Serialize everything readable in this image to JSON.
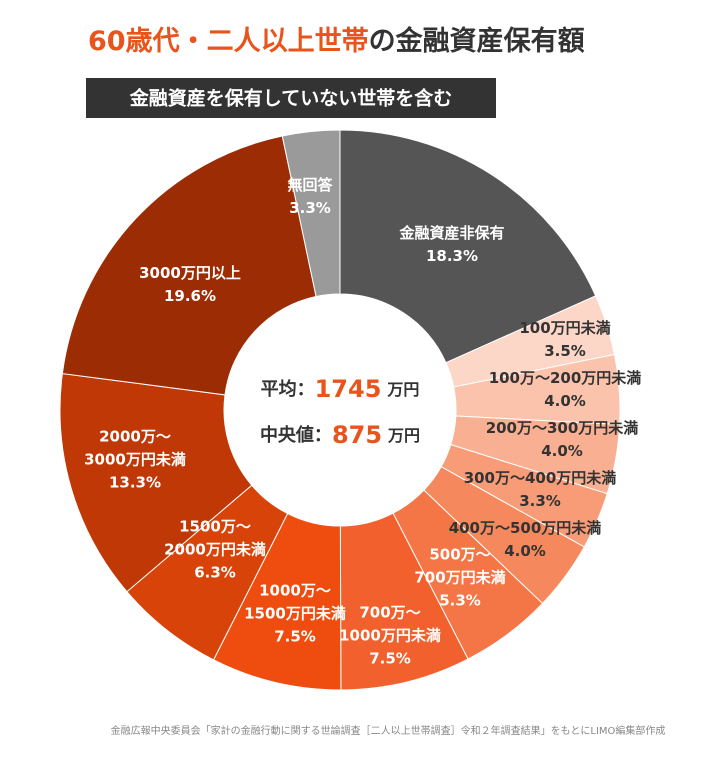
{
  "chart_data": {
    "type": "donut",
    "title_highlight": "60歳代・二人以上世帯",
    "title_rest": "の金融資産保有額",
    "subtitle": "金融資産を保有していない世帯を含む",
    "center": {
      "mean_label": "平均：",
      "mean": 1745,
      "unit": "万円",
      "median_label": "中央値：",
      "median": 875
    },
    "categories": [
      [
        "金融資産非保有"
      ],
      [
        "100万円未満"
      ],
      [
        "100万～200万円未満"
      ],
      [
        "200万～300万円未満"
      ],
      [
        "300万～400万円未満"
      ],
      [
        "400万～500万円未満"
      ],
      [
        "500万～",
        "700万円未満"
      ],
      [
        "700万～",
        "1000万円未満"
      ],
      [
        "1000万～",
        "1500万円未満"
      ],
      [
        "1500万～",
        "2000万円未満"
      ],
      [
        "2000万～",
        "3000万円未満"
      ],
      [
        "3000万円以上"
      ],
      [
        "無回答"
      ]
    ],
    "values": [
      18.3,
      3.5,
      4.0,
      4.0,
      3.3,
      4.0,
      5.3,
      7.5,
      7.5,
      6.3,
      13.3,
      19.6,
      3.3
    ],
    "value_labels": [
      "18.3%",
      "3.5%",
      "4.0%",
      "4.0%",
      "3.3%",
      "4.0%",
      "5.3%",
      "7.5%",
      "7.5%",
      "6.3%",
      "13.3%",
      "19.6%",
      "3.3%"
    ],
    "colors": [
      "#555555",
      "#fcd6c7",
      "#fbc3ac",
      "#f9af92",
      "#f89b77",
      "#f6885d",
      "#f47545",
      "#f2612d",
      "#ef4d10",
      "#d8430a",
      "#c03806",
      "#9b2c04",
      "#9a9a9a"
    ],
    "source": "金融広報中央委員会「家計の金融行動に関する世論調査［二人以上世帯調査］令和２年調査結果」をもとにLIMO編集部作成"
  }
}
